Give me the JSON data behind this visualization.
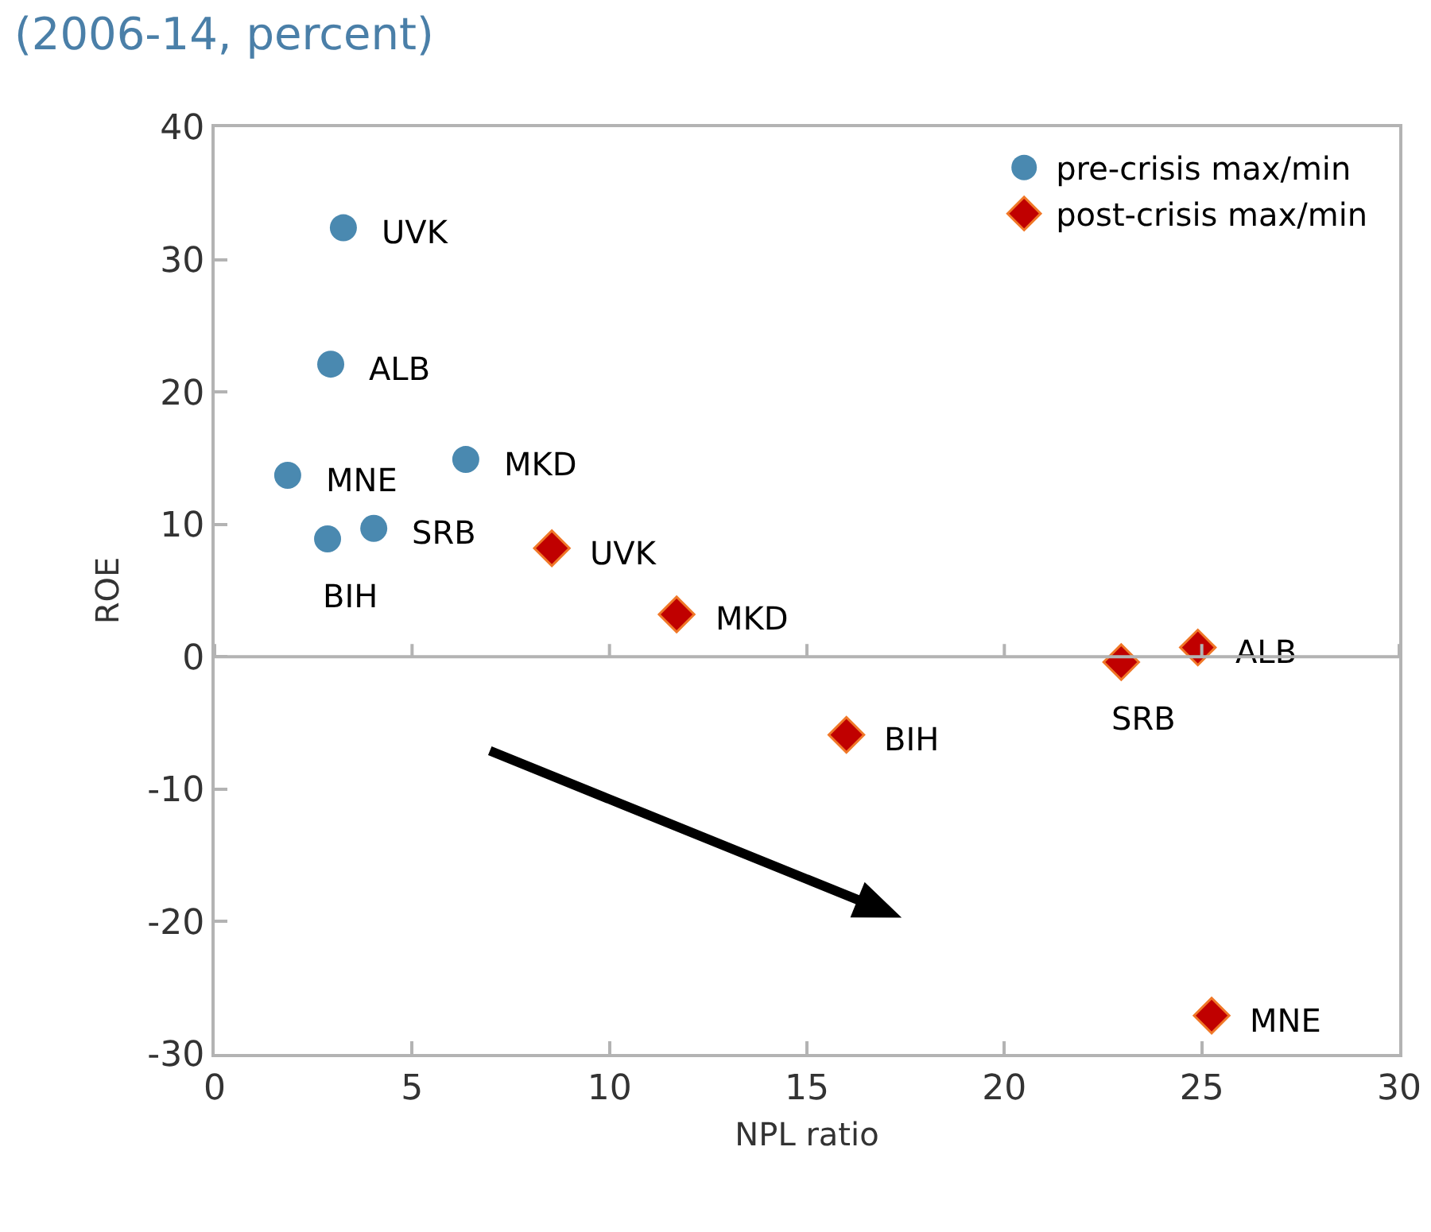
{
  "chart_data": {
    "type": "scatter",
    "title": "(2006-14, percent)",
    "xlabel": "NPL ratio",
    "ylabel": "ROE",
    "xlim": [
      0,
      30
    ],
    "xticks": [
      0,
      5,
      10,
      15,
      20,
      25,
      30
    ],
    "ylim": [
      -30,
      40
    ],
    "yticks": [
      -30,
      -20,
      -10,
      0,
      10,
      20,
      30,
      40
    ],
    "legend": "top right",
    "series": [
      {
        "name": "pre-crisis max/min",
        "color": "#4a89b0",
        "marker": "circle",
        "x": [
          3.26,
          2.94,
          1.85,
          6.36,
          4.03,
          2.86
        ],
        "values": [
          32.4,
          22.1,
          13.7,
          14.9,
          9.7,
          8.9
        ]
      },
      {
        "name": "post-crisis max/min",
        "color": "#c00000",
        "marker": "diamond",
        "x": [
          8.54,
          11.7,
          16.0,
          22.96,
          24.9,
          25.25
        ],
        "values": [
          8.2,
          3.2,
          -5.9,
          -0.4,
          0.7,
          -27.1
        ]
      }
    ],
    "annotations": [
      {
        "text": "UVK",
        "x": 3.26,
        "y": 32.4
      },
      {
        "text": "ALB",
        "x": 2.94,
        "y": 22.1
      },
      {
        "text": "MNE",
        "x": 1.85,
        "y": 13.7
      },
      {
        "text": "MKD",
        "x": 6.36,
        "y": 14.9
      },
      {
        "text": "SRB",
        "x": 4.03,
        "y": 9.7
      },
      {
        "text": "BIH",
        "x": 2.86,
        "y": 8.9
      },
      {
        "text": "UVK",
        "x": 8.54,
        "y": 8.2
      },
      {
        "text": "MKD",
        "x": 11.7,
        "y": 3.2
      },
      {
        "text": "BIH",
        "x": 16.0,
        "y": -5.9
      },
      {
        "text": "SRB",
        "x": 22.96,
        "y": -0.4
      },
      {
        "text": "ALB",
        "x": 24.9,
        "y": 0.7
      },
      {
        "text": "MNE",
        "x": 25.25,
        "y": -27.1
      }
    ]
  }
}
